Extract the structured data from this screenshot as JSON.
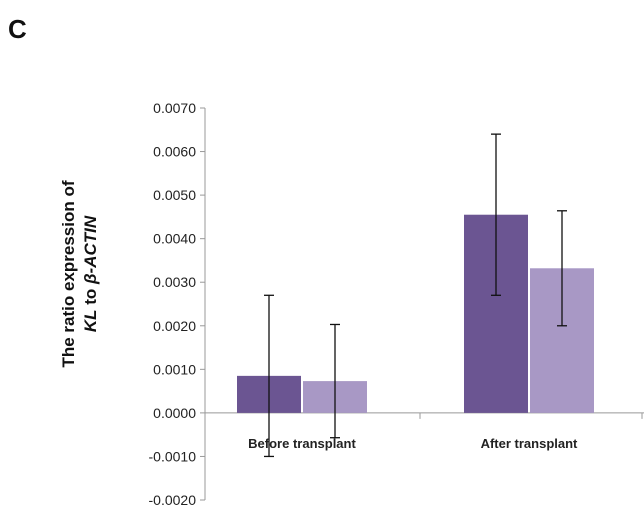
{
  "panel_label": "C",
  "chart_data": {
    "type": "bar",
    "categories": [
      "Before transplant",
      "After transplant"
    ],
    "series": [
      {
        "values": [
          0.00085,
          0.00455
        ],
        "errors": [
          0.00185,
          0.00185
        ],
        "color": "#6b5592"
      },
      {
        "values": [
          0.00073,
          0.00332
        ],
        "errors": [
          0.0013,
          0.00132
        ],
        "color": "#a898c5"
      }
    ],
    "ylabel": {
      "line1": "The ratio expression of",
      "line2_parts": [
        "KL",
        " to ",
        "β-ACTIN"
      ]
    },
    "ylim": [
      -0.002,
      0.007
    ],
    "yticks": [
      -0.002,
      -0.001,
      0.0,
      0.001,
      0.002,
      0.003,
      0.004,
      0.005,
      0.006,
      0.007
    ],
    "ytick_labels": [
      "-0.0020",
      "-0.0010",
      "0.0000",
      "0.0010",
      "0.0020",
      "0.0030",
      "0.0040",
      "0.0050",
      "0.0060",
      "0.0070"
    ],
    "grid": false,
    "legend": "none"
  }
}
